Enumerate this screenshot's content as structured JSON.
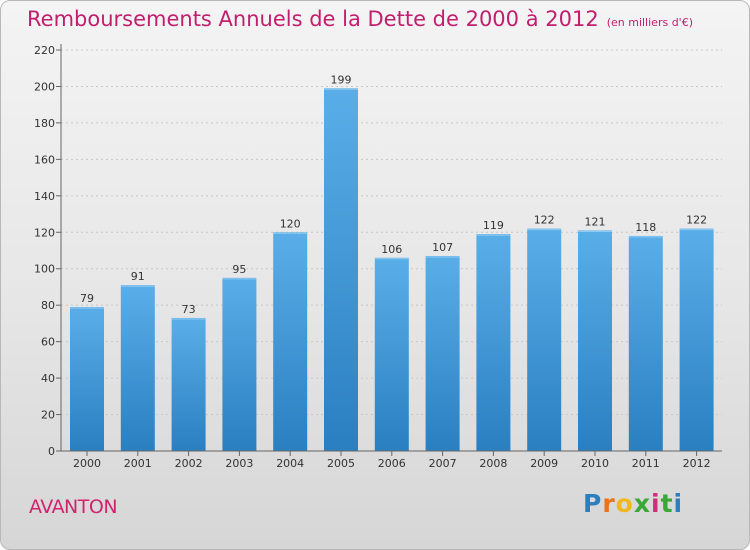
{
  "chart_data": {
    "type": "bar",
    "title": "Remboursements Annuels de la Dette de 2000 à 2012",
    "subtitle": "(en milliers d'€)",
    "categories": [
      "2000",
      "2001",
      "2002",
      "2003",
      "2004",
      "2005",
      "2006",
      "2007",
      "2008",
      "2009",
      "2010",
      "2011",
      "2012"
    ],
    "values": [
      79,
      91,
      73,
      95,
      120,
      199,
      106,
      107,
      119,
      122,
      121,
      118,
      122
    ],
    "ylim": [
      0,
      220
    ],
    "yticks": [
      0,
      20,
      40,
      60,
      80,
      100,
      120,
      140,
      160,
      180,
      200,
      220
    ],
    "grid": true,
    "xlabel": "",
    "ylabel": ""
  },
  "footer": {
    "town": "AVANTON",
    "logo_letters": [
      "P",
      "r",
      "o",
      "x",
      "i",
      "t",
      "i"
    ]
  },
  "colors": {
    "title": "#c21e6e",
    "bar_top": "#5aaee8",
    "bar_bottom": "#2a7fc1",
    "logo": [
      "#2a7fc1",
      "#e8731c",
      "#f0b81e",
      "#3aa835",
      "#d22d7a",
      "#3aa835",
      "#2a7fc1"
    ]
  }
}
